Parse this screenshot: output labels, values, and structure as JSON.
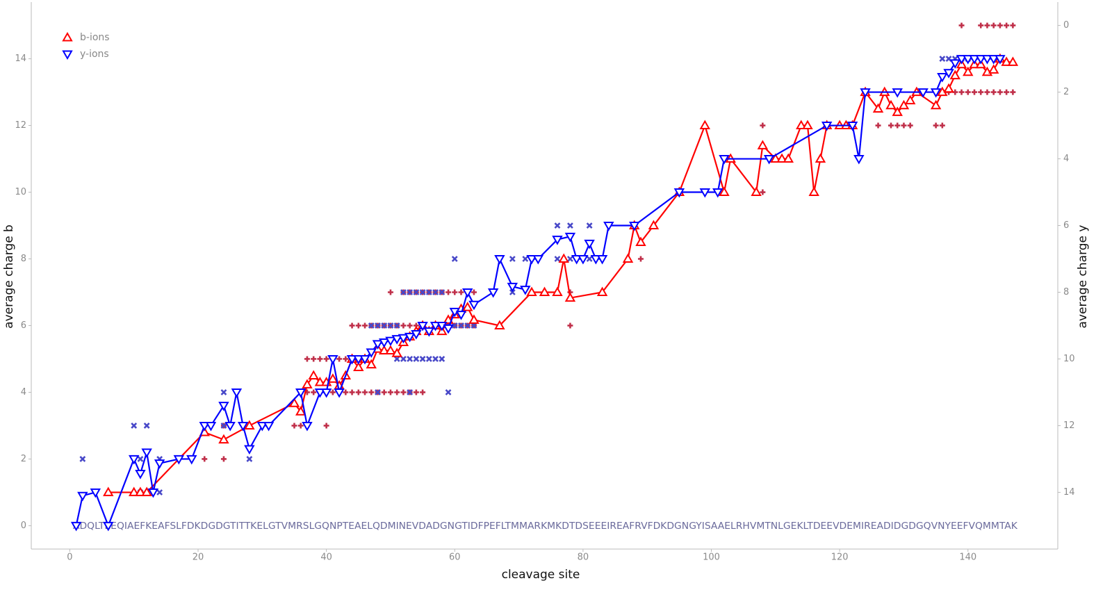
{
  "chart_data": {
    "type": "line",
    "x_label": "cleavage site",
    "y_label": "average charge b",
    "y2_label": "average charge y",
    "sequence": "ADQLTEEQIAEFKEAFSLFDKDGDGTITTKELGTVMRSLGQNPTEAELQDMINEVDADGNGTIDFPEFLTMMARKMKDTDSEEEIREAFRVFDKDGNGYISAAELRHVMTNLGEKLTDEEVDEMIREADIDGDGQVNYEEFVQMMTAK",
    "xlim": [
      -6,
      154
    ],
    "ylim": [
      -0.7,
      15.7
    ],
    "y2lim": [
      15.7,
      -0.7
    ],
    "xticks": [
      0,
      20,
      40,
      60,
      80,
      100,
      120,
      140
    ],
    "yticks": [
      0,
      2,
      4,
      6,
      8,
      10,
      12,
      14
    ],
    "y2ticks": [
      0,
      2,
      4,
      6,
      8,
      10,
      12,
      14
    ],
    "legend": "top-left",
    "series": [
      {
        "name": "b-ions",
        "color": "#ff0000",
        "marker": "triangle-up",
        "axis": "y",
        "line": true,
        "x": [
          6,
          10,
          11,
          12,
          21,
          24,
          28,
          35,
          36,
          37,
          38,
          39,
          40,
          41,
          42,
          43,
          44,
          45,
          46,
          47,
          48,
          49,
          50,
          51,
          52,
          53,
          54,
          55,
          56,
          57,
          58,
          59,
          60,
          61,
          62,
          63,
          67,
          72,
          74,
          76,
          77,
          78,
          83,
          87,
          88,
          89,
          91,
          95,
          99,
          102,
          103,
          107,
          108,
          110,
          111,
          112,
          114,
          115,
          116,
          117,
          118,
          120,
          121,
          122,
          124,
          126,
          127,
          128,
          129,
          130,
          131,
          132,
          135,
          136,
          137,
          138,
          139,
          140,
          141,
          142,
          143,
          144,
          145,
          146,
          147
        ],
        "values": [
          1,
          1,
          1,
          1,
          2.8,
          2.58,
          3,
          3.67,
          3.42,
          4.23,
          4.5,
          4.3,
          4.3,
          4.4,
          4.2,
          4.5,
          5,
          4.75,
          5,
          4.83,
          5.3,
          5.25,
          5.25,
          5.17,
          5.5,
          5.67,
          5.83,
          6,
          5.83,
          6,
          5.83,
          6.17,
          6.33,
          6.5,
          6.55,
          6.17,
          6,
          7,
          7,
          7,
          8,
          6.83,
          7,
          8,
          9,
          8.5,
          9,
          10,
          12,
          10,
          11,
          10,
          11.4,
          11,
          11,
          11,
          12,
          12,
          10,
          11,
          12,
          12,
          12,
          12,
          13,
          12.5,
          13,
          12.6,
          12.4,
          12.6,
          12.75,
          13,
          12.6,
          13,
          13.1,
          13.5,
          13.83,
          13.6,
          13.83,
          13.83,
          13.6,
          13.67,
          14,
          13.9,
          13.9
        ]
      },
      {
        "name": "y-ions",
        "color": "#0000ff",
        "marker": "triangle-down",
        "axis": "y2",
        "line": true,
        "x": [
          1,
          2,
          4,
          6,
          10,
          11,
          12,
          13,
          14,
          17,
          19,
          21,
          22,
          24,
          25,
          26,
          27,
          28,
          30,
          31,
          36,
          37,
          39,
          40,
          41,
          42,
          44,
          45,
          46,
          47,
          48,
          49,
          50,
          51,
          52,
          53,
          54,
          55,
          56,
          57,
          58,
          59,
          60,
          61,
          62,
          63,
          66,
          67,
          69,
          71,
          72,
          73,
          76,
          78,
          79,
          80,
          81,
          82,
          83,
          84,
          88,
          95,
          99,
          101,
          102,
          109,
          118,
          122,
          123,
          124,
          129,
          133,
          135,
          136,
          137,
          138,
          139,
          140,
          141,
          142,
          143,
          144,
          145
        ],
        "values": [
          15,
          14.1,
          14,
          15,
          13,
          13.44,
          12.8,
          14,
          13.13,
          13,
          13,
          12,
          12,
          11.4,
          12,
          11,
          12,
          12.7,
          12,
          12,
          11,
          12,
          11,
          11,
          10,
          11,
          10,
          10,
          10,
          9.8,
          9.55,
          9.5,
          9.45,
          9.4,
          9.37,
          9.33,
          9.25,
          9,
          9.17,
          9,
          9,
          9.08,
          8.58,
          8.67,
          8,
          8.37,
          8,
          7,
          7.83,
          7.92,
          7,
          7,
          6.42,
          6.33,
          7,
          7,
          6.54,
          7,
          7,
          6,
          6,
          5,
          5,
          5,
          4,
          4,
          3,
          3,
          4,
          2,
          2,
          2,
          2,
          1.54,
          1.42,
          1.13,
          1,
          1,
          1,
          1,
          1,
          1,
          1
        ]
      },
      {
        "color": "#c0304a",
        "marker": "plus",
        "axis": "y",
        "line": false,
        "x": [
          21,
          24,
          24,
          35,
          36,
          40,
          36,
          37,
          38,
          39,
          40,
          41,
          42,
          43,
          44,
          45,
          46,
          47,
          48,
          49,
          50,
          51,
          52,
          53,
          54,
          55,
          37,
          38,
          39,
          40,
          41,
          42,
          43,
          44,
          45,
          46,
          47,
          48,
          49,
          50,
          51,
          52,
          53,
          54,
          55,
          59,
          60,
          61,
          62,
          63,
          50,
          52,
          53,
          54,
          55,
          56,
          57,
          58,
          59,
          60,
          61,
          62,
          63,
          78,
          78,
          89,
          108,
          108,
          126,
          128,
          129,
          130,
          131,
          135,
          136,
          136,
          137,
          138,
          139,
          140,
          141,
          142,
          143,
          144,
          145,
          146,
          147,
          139,
          142,
          143,
          144,
          145,
          146,
          147
        ],
        "values": [
          2,
          2,
          3,
          3,
          3,
          3,
          4,
          4,
          4,
          4,
          4,
          4,
          4,
          4,
          4,
          4,
          4,
          4,
          4,
          4,
          4,
          4,
          4,
          4,
          4,
          4,
          5,
          5,
          5,
          5,
          5,
          5,
          5,
          6,
          6,
          6,
          6,
          6,
          6,
          6,
          6,
          6,
          6,
          6,
          6,
          6,
          6,
          6,
          6,
          6,
          7,
          7,
          7,
          7,
          7,
          7,
          7,
          7,
          7,
          7,
          7,
          7,
          7,
          6,
          7,
          8,
          10,
          12,
          12,
          12,
          12,
          12,
          12,
          12,
          12,
          13,
          13,
          13,
          13,
          13,
          13,
          13,
          13,
          13,
          13,
          13,
          13,
          15,
          15,
          15,
          15,
          15,
          15,
          15
        ]
      },
      {
        "color": "#4848c8",
        "marker": "cross",
        "axis": "y2",
        "line": false,
        "x": [
          2,
          10,
          11,
          11,
          12,
          14,
          14,
          24,
          24,
          28,
          47,
          48,
          49,
          50,
          51,
          59,
          60,
          61,
          62,
          63,
          48,
          51,
          52,
          53,
          54,
          55,
          56,
          57,
          58,
          52,
          53,
          54,
          55,
          56,
          57,
          58,
          53,
          59,
          60,
          69,
          69,
          71,
          76,
          76,
          78,
          78,
          81,
          81,
          136,
          137,
          138,
          139,
          140
        ],
        "values": [
          13,
          12,
          13,
          14,
          12,
          13,
          14,
          11,
          12,
          13,
          9,
          9,
          9,
          9,
          9,
          9,
          9,
          9,
          9,
          9,
          11,
          10,
          10,
          10,
          10,
          10,
          10,
          10,
          10,
          8,
          8,
          8,
          8,
          8,
          8,
          8,
          11,
          11,
          7,
          7,
          8,
          7,
          6,
          7,
          6,
          7,
          6,
          7,
          1,
          1,
          1,
          1,
          1
        ]
      }
    ]
  }
}
